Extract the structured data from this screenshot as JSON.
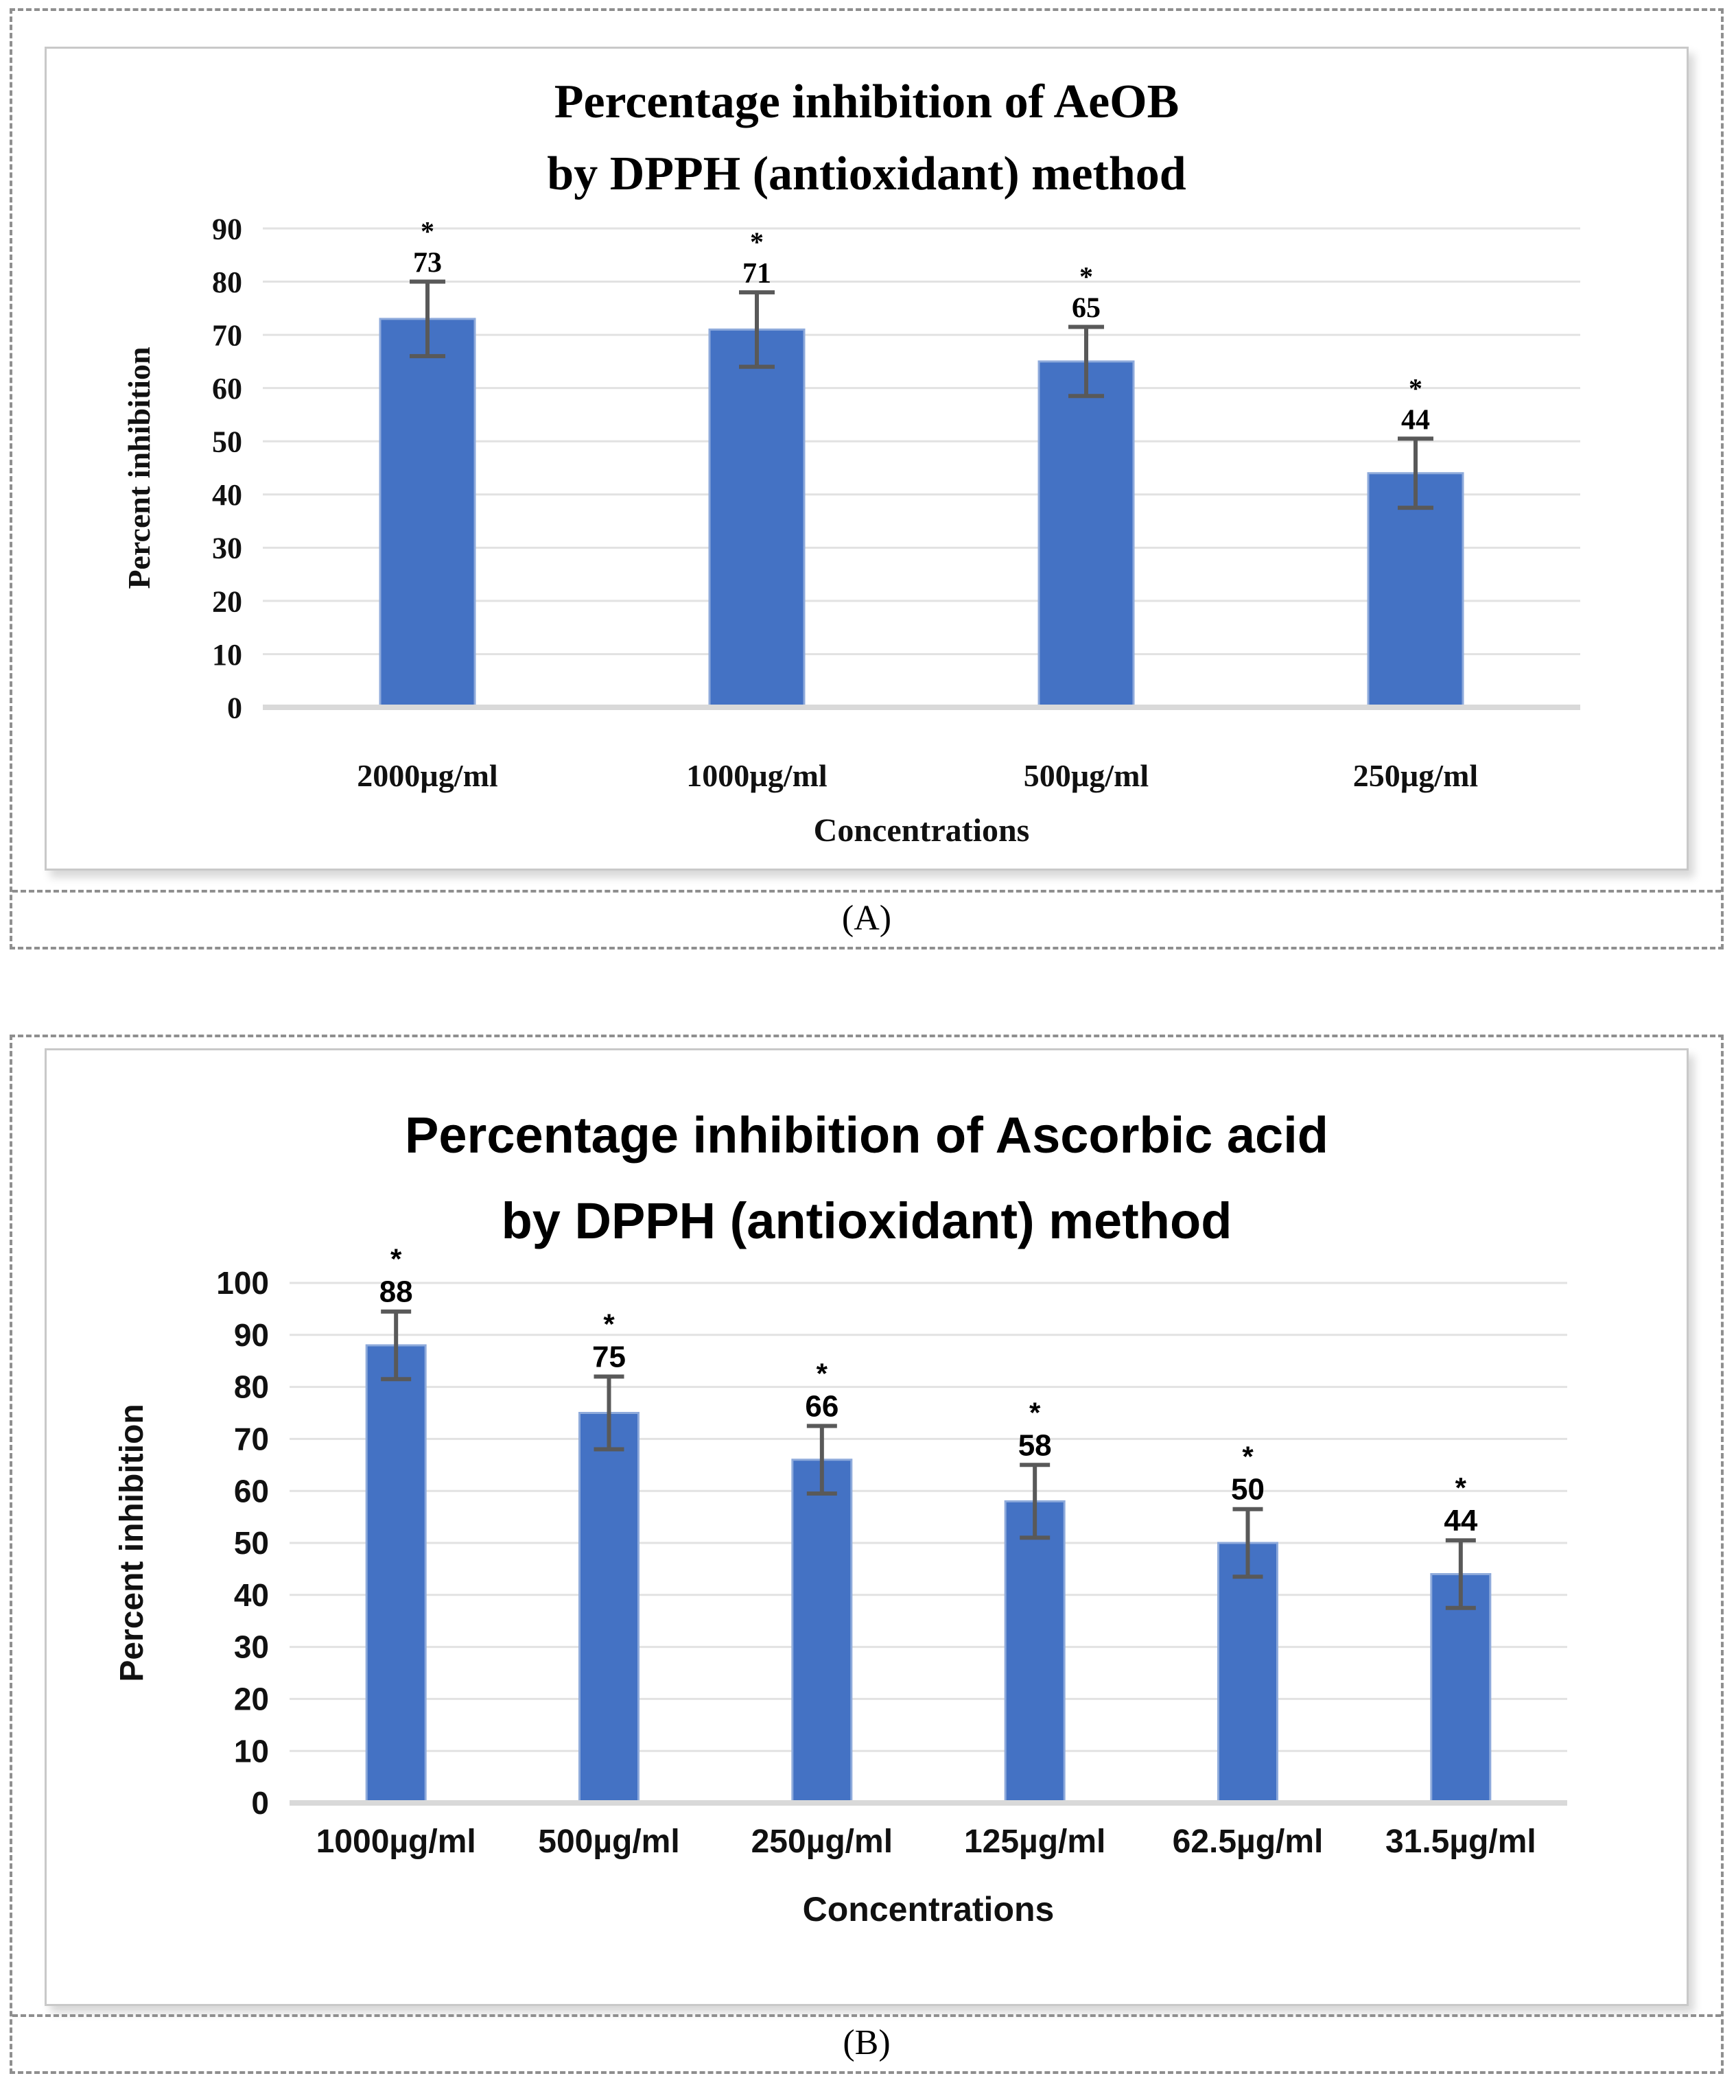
{
  "page": {
    "background": "#FFFFFF"
  },
  "chart_data": [
    {
      "type": "bar",
      "panel": "A",
      "caption": "(A)",
      "title_lines": [
        "Percentage inhibition of AeOB",
        "by DPPH (antioxidant) method"
      ],
      "categories": [
        "2000µg/ml",
        "1000µg/ml",
        "500µg/ml",
        "250µg/ml"
      ],
      "values": [
        73,
        71,
        65,
        44
      ],
      "error_bars": [
        7,
        7,
        6.5,
        6.5
      ],
      "bar_labels": [
        "73",
        "71",
        "65",
        "44"
      ],
      "significance_markers": [
        "*",
        "*",
        "*",
        "*"
      ],
      "xlabel": "Concentrations",
      "ylabel": "Percent inhibition",
      "ylim": [
        0,
        90
      ],
      "ytick_step": 10,
      "grid": true,
      "legend": false,
      "colors": {
        "bar_fill": "#4472C4",
        "bar_border": "#8EAADB",
        "error_bar": "#595959",
        "gridline": "#E2E2E2",
        "axis_line": "#D9D9D9",
        "text": "#111111"
      }
    },
    {
      "type": "bar",
      "panel": "B",
      "caption": "(B)",
      "title_lines": [
        "Percentage inhibition of Ascorbic acid",
        "by DPPH (antioxidant) method"
      ],
      "categories": [
        "1000µg/ml",
        "500µg/ml",
        "250µg/ml",
        "125µg/ml",
        "62.5µg/ml",
        "31.5µg/ml"
      ],
      "values": [
        88,
        75,
        66,
        58,
        50,
        44
      ],
      "error_bars": [
        6.5,
        7,
        6.5,
        7,
        6.5,
        6.5
      ],
      "bar_labels": [
        "88",
        "75",
        "66",
        "58",
        "50",
        "44"
      ],
      "significance_markers": [
        "*",
        "*",
        "*",
        "*",
        "*",
        "*"
      ],
      "xlabel": "Concentrations",
      "ylabel": "Percent inhibition",
      "ylim": [
        0,
        100
      ],
      "ytick_step": 10,
      "grid": true,
      "legend": false,
      "colors": {
        "bar_fill": "#4472C4",
        "bar_border": "#8EAADB",
        "error_bar": "#595959",
        "gridline": "#E2E2E2",
        "axis_line": "#D9D9D9",
        "text": "#111111"
      }
    }
  ]
}
